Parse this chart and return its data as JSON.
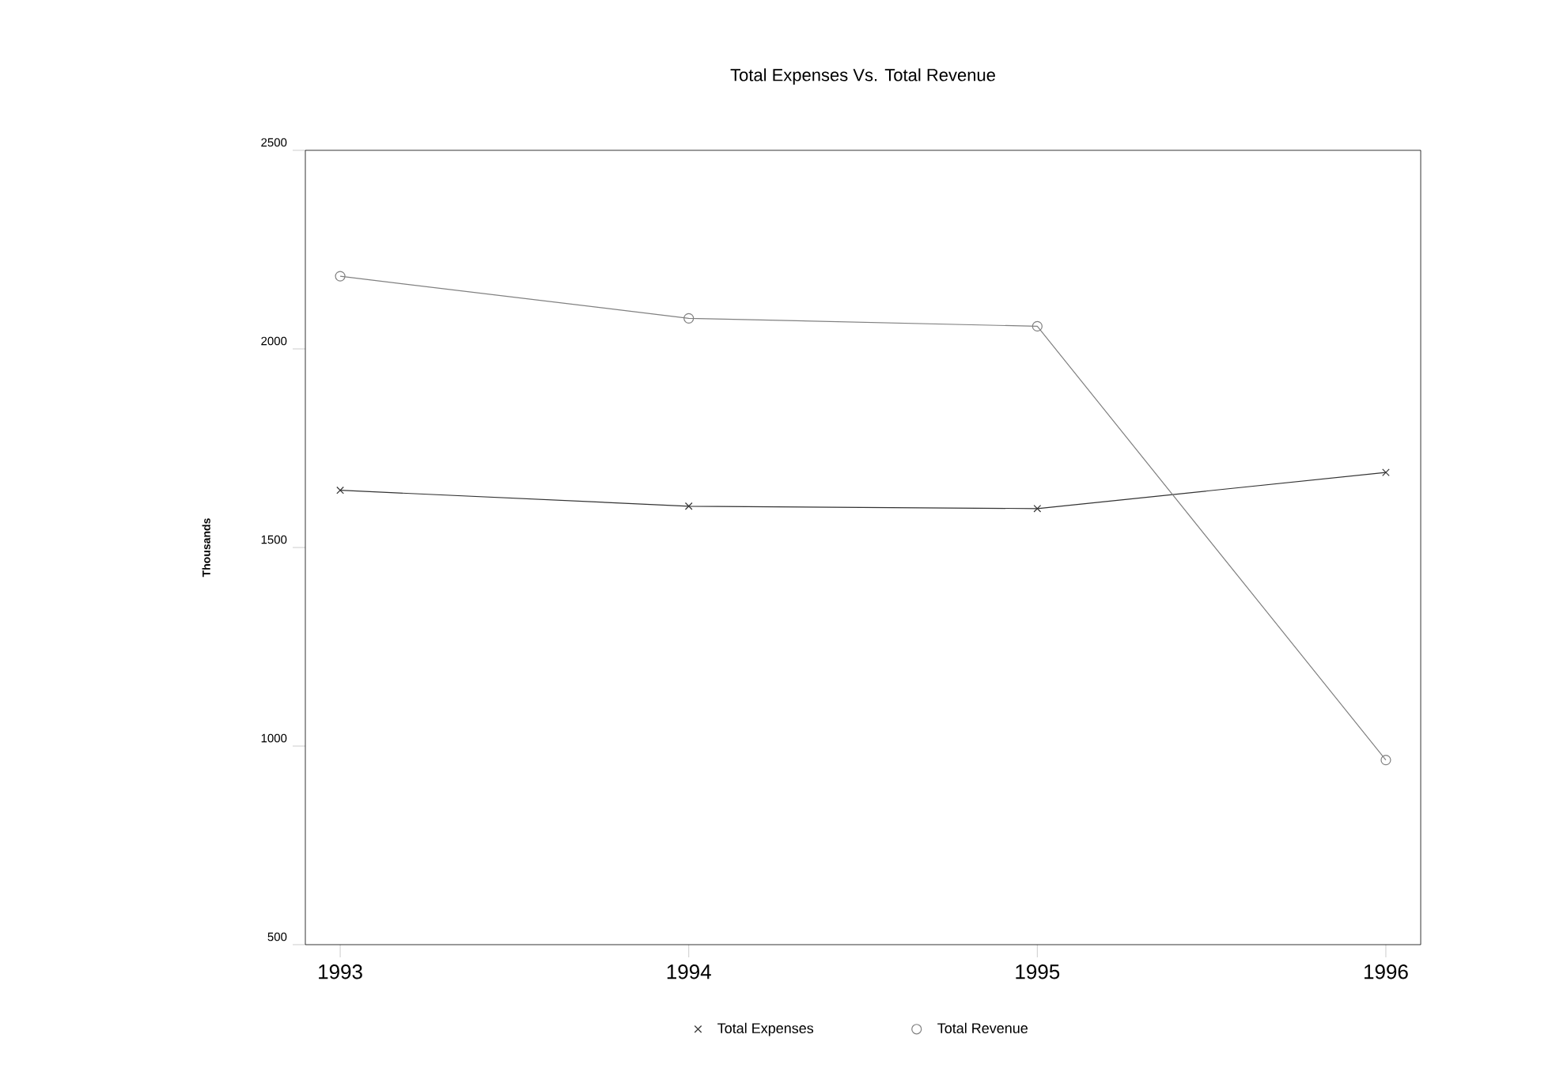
{
  "chart_data": {
    "type": "line",
    "title": "Total Expenses Vs. Total Revenue",
    "ylabel": "Thousands",
    "categories": [
      "1993",
      "1994",
      "1995",
      "1996"
    ],
    "series": [
      {
        "name": "Total Expenses",
        "color": "#333333",
        "marker": "cross",
        "values": [
          1644,
          1604,
          1598,
          1689
        ]
      },
      {
        "name": "Total Revenue",
        "color": "#808080",
        "marker": "circle",
        "values": [
          2183,
          2077,
          2057,
          965
        ]
      }
    ],
    "ylim": [
      500,
      2500
    ],
    "yticks": [
      500,
      1000,
      1500,
      2000,
      2500
    ],
    "grid": false,
    "legend": "bottom",
    "line_style": "solid"
  }
}
